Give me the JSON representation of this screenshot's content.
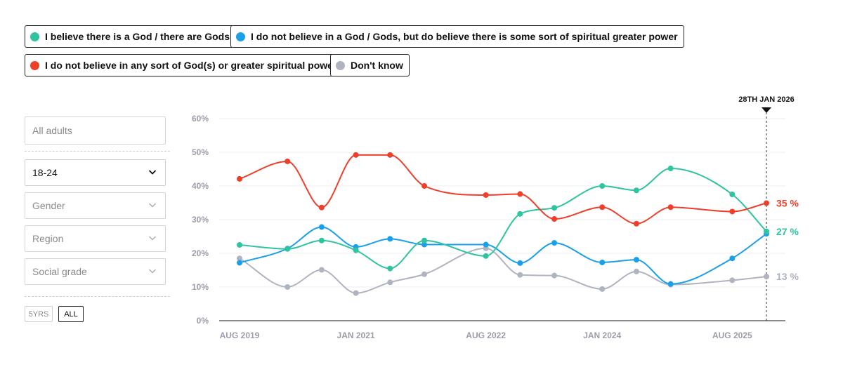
{
  "legend": [
    {
      "label": "I believe there is a God / there are Gods",
      "color": "#2ec4a0"
    },
    {
      "label": "I do not believe in a God / Gods, but do believe there is some sort of spiritual greater power",
      "color": "#1aa0e8"
    },
    {
      "label": "I do not believe in any sort of God(s) or greater spiritual power",
      "color": "#ef3f2b"
    },
    {
      "label": "Don't know",
      "color": "#b0b3c0"
    }
  ],
  "filters": {
    "audience_placeholder": "All adults",
    "age_value": "18-24",
    "gender_placeholder": "Gender",
    "region_placeholder": "Region",
    "social_grade_placeholder": "Social grade"
  },
  "range_buttons": {
    "five_years": "5YRS",
    "all": "ALL",
    "selected": "ALL"
  },
  "chart_data": {
    "type": "line",
    "x": [
      "2019-08",
      "2020-03",
      "2020-08",
      "2021-01",
      "2021-06",
      "2021-11",
      "2022-08",
      "2023-01",
      "2023-06",
      "2024-01",
      "2024-06",
      "2024-11",
      "2025-08",
      "2026-01"
    ],
    "xticks": [
      "AUG 2019",
      "JAN 2021",
      "AUG 2022",
      "JAN 2024",
      "AUG 2025"
    ],
    "xtick_dates": [
      "2019-08",
      "2021-01",
      "2022-08",
      "2024-01",
      "2025-08"
    ],
    "yticks": [
      "0%",
      "10%",
      "20%",
      "30%",
      "40%",
      "50%",
      "60%"
    ],
    "ylim": [
      0,
      60
    ],
    "grid": true,
    "marker": {
      "label": "28TH JAN 2026",
      "date": "2026-01"
    },
    "series": [
      {
        "name": "I believe there is a God / there are Gods",
        "color": "#2ec4a0",
        "end_label": "27 %",
        "values": [
          22.5,
          21.3,
          23.8,
          20.9,
          15.5,
          23.8,
          19.2,
          31.7,
          33.5,
          40.0,
          38.7,
          45.2,
          37.5,
          26.5
        ]
      },
      {
        "name": "I do not believe in a God / Gods, but do believe there is some sort of spiritual greater power",
        "color": "#1aa0e8",
        "end_label": "",
        "values": [
          17.2,
          21.4,
          27.8,
          21.9,
          24.3,
          22.6,
          22.6,
          17.1,
          23.1,
          17.3,
          18.1,
          10.9,
          18.5,
          25.8
        ]
      },
      {
        "name": "I do not believe in any sort of God(s) or greater spiritual power",
        "color": "#ef3f2b",
        "end_label": "35 %",
        "values": [
          42.1,
          47.3,
          33.6,
          49.2,
          49.2,
          40.0,
          37.3,
          37.6,
          30.2,
          33.7,
          28.8,
          33.7,
          32.4,
          34.9
        ]
      },
      {
        "name": "Don't know",
        "color": "#b0b3c0",
        "end_label": "13 %",
        "values": [
          18.5,
          10.0,
          15.1,
          8.2,
          11.4,
          13.8,
          21.5,
          13.6,
          13.4,
          9.4,
          14.6,
          10.7,
          12.0,
          13.1
        ]
      }
    ]
  }
}
